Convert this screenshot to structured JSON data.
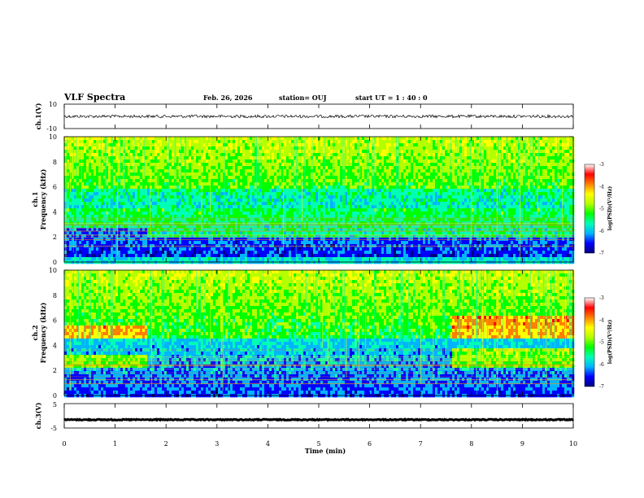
{
  "header": {
    "title": "VLF Spectra",
    "date": "Feb. 26, 2026",
    "station": "station= OUJ",
    "start": "start  UT =   1 : 40 : 0"
  },
  "chart_data": [
    {
      "type": "line",
      "panel": "ch1-waveform",
      "ylabel": "ch.1(V)",
      "yticks": [
        "10",
        "-10"
      ],
      "ylim": [
        -10,
        10
      ],
      "level": 0,
      "noise_amplitude": 1.2
    },
    {
      "type": "heatmap",
      "panel": "ch1-spectrogram",
      "ylabel_line1": "ch.1",
      "ylabel_line2": "Frequency (kHz)",
      "yticks": [
        "0",
        "2",
        "4",
        "6",
        "8",
        "10"
      ],
      "ylim": [
        0,
        10
      ],
      "xlim": [
        0,
        9.85
      ],
      "colorbar": {
        "label": "log(PSD)(V²/Hz)",
        "ticks": [
          "-3",
          "-4",
          "-5",
          "-6",
          "-7"
        ],
        "range": [
          -7,
          -3
        ]
      },
      "segments": [
        {
          "t_start": 0,
          "t_end": 1.6,
          "band_low_kHz": [
            0,
            2.8
          ],
          "band_mid_kHz": [
            4.5,
            6
          ]
        },
        {
          "t_start": 1.6,
          "t_end": 9.85,
          "band_low_kHz": [
            0,
            2.2
          ],
          "band_mid_kHz": [
            4.5,
            6
          ]
        }
      ]
    },
    {
      "type": "heatmap",
      "panel": "ch2-spectrogram",
      "ylabel_line1": "ch.2",
      "ylabel_line2": "Frequency (kHz)",
      "yticks": [
        "0",
        "2",
        "4",
        "6",
        "8",
        "10"
      ],
      "ylim": [
        0,
        10
      ],
      "xlim": [
        0,
        9.85
      ],
      "colorbar": {
        "label": "log(PSD)(V²/Hz)",
        "ticks": [
          "-3",
          "-4",
          "-5",
          "-6",
          "-7"
        ],
        "range": [
          -7,
          -3
        ]
      },
      "segments": [
        {
          "t_start": 0,
          "t_end": 1.6,
          "strong_bands_kHz": [
            [
              2.3,
              3.5
            ],
            [
              4.7,
              5.6
            ]
          ]
        },
        {
          "t_start": 1.6,
          "t_end": 7.6,
          "strong_bands_kHz": []
        },
        {
          "t_start": 7.6,
          "t_end": 9.85,
          "strong_bands_kHz": [
            [
              2.3,
              3.8
            ],
            [
              4.7,
              6.5
            ]
          ]
        }
      ]
    },
    {
      "type": "line",
      "panel": "ch3-waveform",
      "ylabel": "ch.3(V)",
      "yticks": [
        "5",
        "-5"
      ],
      "ylim": [
        -5,
        5
      ],
      "level": -1.6,
      "noise_amplitude": 0.2
    }
  ],
  "xaxis": {
    "label": "Time (min)",
    "ticks": [
      "0",
      "1",
      "2",
      "3",
      "4",
      "5",
      "6",
      "7",
      "8",
      "9",
      "10"
    ],
    "xlim": [
      0,
      10
    ]
  },
  "colors": {
    "cmap": [
      "#00007f",
      "#0000ff",
      "#00b4ff",
      "#00ffb4",
      "#00ff00",
      "#b4ff00",
      "#ffff00",
      "#ff8000",
      "#ff0000",
      "#ffffff"
    ]
  }
}
